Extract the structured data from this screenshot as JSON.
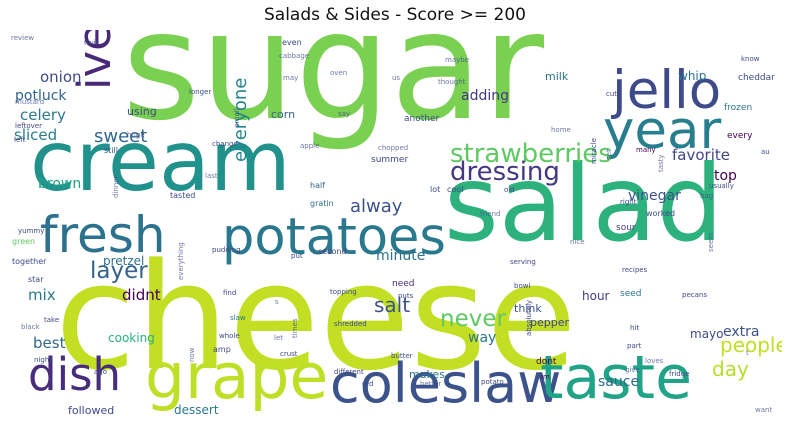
{
  "chart_data": {
    "type": "wordcloud",
    "title": "Salads & Sides - Score >= 200",
    "colormap": "viridis",
    "background": "#ffffff",
    "words": [
      {
        "text": "sugar",
        "size": 1.0,
        "color": "#7ad151",
        "vertical": false
      },
      {
        "text": "cheese",
        "size": 0.98,
        "color": "#c2df23",
        "vertical": false
      },
      {
        "text": "salad",
        "size": 0.7,
        "color": "#2db27d",
        "vertical": false
      },
      {
        "text": "cream",
        "size": 0.55,
        "color": "#21918c",
        "vertical": false
      },
      {
        "text": "grape",
        "size": 0.42,
        "color": "#bddf26",
        "vertical": false
      },
      {
        "text": "coleslaw",
        "size": 0.36,
        "color": "#3b528b",
        "vertical": false
      },
      {
        "text": "taste",
        "size": 0.4,
        "color": "#20a386",
        "vertical": false
      },
      {
        "text": "potatoes",
        "size": 0.34,
        "color": "#2a788e",
        "vertical": false
      },
      {
        "text": "jello",
        "size": 0.35,
        "color": "#3e4a89",
        "vertical": false
      },
      {
        "text": "year",
        "size": 0.35,
        "color": "#277f8e",
        "vertical": false
      },
      {
        "text": "fresh",
        "size": 0.33,
        "color": "#2c728e",
        "vertical": false
      },
      {
        "text": "dish",
        "size": 0.3,
        "color": "#472d7b",
        "vertical": false
      },
      {
        "text": "ive",
        "size": 0.3,
        "color": "#482878",
        "vertical": true
      },
      {
        "text": "strawberries",
        "size": 0.17,
        "color": "#5ec962",
        "vertical": false
      },
      {
        "text": "dressing",
        "size": 0.17,
        "color": "#453781",
        "vertical": false
      },
      {
        "text": "layer",
        "size": 0.15,
        "color": "#33638d",
        "vertical": false
      },
      {
        "text": "never",
        "size": 0.15,
        "color": "#5ec962",
        "vertical": false
      },
      {
        "text": "people",
        "size": 0.13,
        "color": "#c2df23",
        "vertical": false
      },
      {
        "text": "day",
        "size": 0.13,
        "color": "#b5de2b",
        "vertical": false
      },
      {
        "text": "salt",
        "size": 0.13,
        "color": "#3b528b",
        "vertical": false
      },
      {
        "text": "sweet",
        "size": 0.12,
        "color": "#31688e",
        "vertical": false
      },
      {
        "text": "alway",
        "size": 0.12,
        "color": "#3b528b",
        "vertical": false
      },
      {
        "text": "everyone",
        "size": 0.12,
        "color": "#25858e",
        "vertical": true
      },
      {
        "text": "favorite",
        "size": 0.1,
        "color": "#414487",
        "vertical": false
      },
      {
        "text": "celery",
        "size": 0.1,
        "color": "#2a788e",
        "vertical": false
      },
      {
        "text": "onion",
        "size": 0.1,
        "color": "#3e4a89",
        "vertical": false
      },
      {
        "text": "potluck",
        "size": 0.09,
        "color": "#33638d",
        "vertical": false
      },
      {
        "text": "sliced",
        "size": 0.1,
        "color": "#277f8e",
        "vertical": false
      },
      {
        "text": "adding",
        "size": 0.09,
        "color": "#453781",
        "vertical": false
      },
      {
        "text": "didnt",
        "size": 0.1,
        "color": "#440154",
        "vertical": false
      },
      {
        "text": "mix",
        "size": 0.1,
        "color": "#2a788e",
        "vertical": false
      },
      {
        "text": "best",
        "size": 0.1,
        "color": "#31688e",
        "vertical": false
      },
      {
        "text": "brown",
        "size": 0.09,
        "color": "#1fa187",
        "vertical": false
      },
      {
        "text": "top",
        "size": 0.09,
        "color": "#440154",
        "vertical": false
      },
      {
        "text": "vinegar",
        "size": 0.09,
        "color": "#3b528b",
        "vertical": false
      },
      {
        "text": "minute",
        "size": 0.09,
        "color": "#2c728e",
        "vertical": false
      },
      {
        "text": "extra",
        "size": 0.09,
        "color": "#3b528b",
        "vertical": false
      },
      {
        "text": "way",
        "size": 0.09,
        "color": "#2a788e",
        "vertical": false
      },
      {
        "text": "sauce",
        "size": 0.09,
        "color": "#31688e",
        "vertical": false
      },
      {
        "text": "mayo",
        "size": 0.08,
        "color": "#3e4a89",
        "vertical": false
      },
      {
        "text": "whip",
        "size": 0.08,
        "color": "#2c728e",
        "vertical": false
      },
      {
        "text": "cooking",
        "size": 0.08,
        "color": "#29af7f",
        "vertical": false
      },
      {
        "text": "pretzel",
        "size": 0.08,
        "color": "#2c728e",
        "vertical": false
      },
      {
        "text": "hour",
        "size": 0.08,
        "color": "#433e85",
        "vertical": false
      },
      {
        "text": "dessert",
        "size": 0.08,
        "color": "#2a788e",
        "vertical": false
      },
      {
        "text": "makes",
        "size": 0.07,
        "color": "#2a788e",
        "vertical": false
      },
      {
        "text": "pepper",
        "size": 0.07,
        "color": "#414487",
        "vertical": false
      },
      {
        "text": "think",
        "size": 0.07,
        "color": "#3b528b",
        "vertical": false
      },
      {
        "text": "followed",
        "size": 0.07,
        "color": "#3e4a89",
        "vertical": false
      },
      {
        "text": "milk",
        "size": 0.07,
        "color": "#2c728e",
        "vertical": false
      },
      {
        "text": "corn",
        "size": 0.07,
        "color": "#33638d",
        "vertical": false
      },
      {
        "text": "using",
        "size": 0.07,
        "color": "#3e4a89",
        "vertical": false
      },
      {
        "text": "summer",
        "size": 0.06,
        "color": "#3e4a89",
        "vertical": false
      },
      {
        "text": "every",
        "size": 0.06,
        "color": "#440154",
        "vertical": false
      },
      {
        "text": "cheddar",
        "size": 0.06,
        "color": "#3e4a89",
        "vertical": false
      },
      {
        "text": "frozen",
        "size": 0.06,
        "color": "#2c728e",
        "vertical": false
      },
      {
        "text": "another",
        "size": 0.06,
        "color": "#3e4a89",
        "vertical": false
      },
      {
        "text": "dont",
        "size": 0.06,
        "color": "#440154",
        "vertical": false
      },
      {
        "text": "need",
        "size": 0.06,
        "color": "#482878",
        "vertical": false
      },
      {
        "text": "seed",
        "size": 0.06,
        "color": "#2a788e",
        "vertical": false
      },
      {
        "text": "sour",
        "size": 0.06,
        "color": "#433e85",
        "vertical": false
      },
      {
        "text": "worked",
        "size": 0.05,
        "color": "#3e4a89",
        "vertical": false
      },
      {
        "text": "amp",
        "size": 0.05,
        "color": "#3e4a89",
        "vertical": false
      },
      {
        "text": "half",
        "size": 0.05,
        "color": "#33638d",
        "vertical": false
      },
      {
        "text": "second",
        "size": 0.05,
        "color": "#414487",
        "vertical": false
      },
      {
        "text": "tasted",
        "size": 0.05,
        "color": "#3e4a89",
        "vertical": false
      },
      {
        "text": "even",
        "size": 0.05,
        "color": "#3e4a89",
        "vertical": false
      },
      {
        "text": "still",
        "size": 0.05,
        "color": "#3b528b",
        "vertical": false
      },
      {
        "text": "green",
        "size": 0.05,
        "color": "#5ec962",
        "vertical": false
      },
      {
        "text": "together",
        "size": 0.05,
        "color": "#3e4a89",
        "vertical": false
      },
      {
        "text": "star",
        "size": 0.05,
        "color": "#3e4a89",
        "vertical": false
      },
      {
        "text": "gratin",
        "size": 0.05,
        "color": "#2c728e",
        "vertical": false
      },
      {
        "text": "lot",
        "size": 0.05,
        "color": "#3e4a89",
        "vertical": false
      },
      {
        "text": "cool",
        "size": 0.05,
        "color": "#3e4a89",
        "vertical": false
      },
      {
        "text": "fruit",
        "size": 0.04,
        "color": "#3e4a89",
        "vertical": false
      },
      {
        "text": "usually",
        "size": 0.04,
        "color": "#3e4a89",
        "vertical": false
      },
      {
        "text": "right",
        "size": 0.04,
        "color": "#3e4a89",
        "vertical": false
      },
      {
        "text": "yummy",
        "size": 0.04,
        "color": "#3e4a89",
        "vertical": false
      },
      {
        "text": "different",
        "size": 0.04,
        "color": "#3e4a89",
        "vertical": false
      },
      {
        "text": "crust",
        "size": 0.04,
        "color": "#3e4a89",
        "vertical": false
      },
      {
        "text": "whole",
        "size": 0.04,
        "color": "#3e4a89",
        "vertical": false
      },
      {
        "text": "slaw",
        "size": 0.04,
        "color": "#2a788e",
        "vertical": false
      },
      {
        "text": "longer",
        "size": 0.04,
        "color": "#3e4a89",
        "vertical": false
      },
      {
        "text": "cut",
        "size": 0.04,
        "color": "#3e4a89",
        "vertical": false
      },
      {
        "text": "old",
        "size": 0.04,
        "color": "#3e4a89",
        "vertical": false
      },
      {
        "text": "take",
        "size": 0.04,
        "color": "#3e4a89",
        "vertical": false
      },
      {
        "text": "night",
        "size": 0.04,
        "color": "#3e4a89",
        "vertical": false
      },
      {
        "text": "leftover",
        "size": 0.04,
        "color": "#3e4a89",
        "vertical": false
      },
      {
        "text": "left",
        "size": 0.04,
        "color": "#3e4a89",
        "vertical": false
      },
      {
        "text": "change",
        "size": 0.04,
        "color": "#3e4a89",
        "vertical": false
      },
      {
        "text": "pudding",
        "size": 0.04,
        "color": "#3e4a89",
        "vertical": false
      },
      {
        "text": "put",
        "size": 0.04,
        "color": "#3e4a89",
        "vertical": false
      },
      {
        "text": "find",
        "size": 0.04,
        "color": "#3e4a89",
        "vertical": false
      },
      {
        "text": "nuts",
        "size": 0.04,
        "color": "#3e4a89",
        "vertical": false
      },
      {
        "text": "bowl",
        "size": 0.04,
        "color": "#3e4a89",
        "vertical": false
      },
      {
        "text": "fridge",
        "size": 0.04,
        "color": "#3e4a89",
        "vertical": false
      },
      {
        "text": "red",
        "size": 0.04,
        "color": "#3e4a89",
        "vertical": false
      },
      {
        "text": "im",
        "size": 0.04,
        "color": "#440154",
        "vertical": false
      },
      {
        "text": "hit",
        "size": 0.04,
        "color": "#3e4a89",
        "vertical": false
      },
      {
        "text": "part",
        "size": 0.04,
        "color": "#3e4a89",
        "vertical": false
      },
      {
        "text": "recipes",
        "size": 0.04,
        "color": "#3e4a89",
        "vertical": false
      },
      {
        "text": "serving",
        "size": 0.04,
        "color": "#3e4a89",
        "vertical": false
      },
      {
        "text": "pecans",
        "size": 0.04,
        "color": "#3e4a89",
        "vertical": false
      },
      {
        "text": "ago",
        "size": 0.04,
        "color": "#3e4a89",
        "vertical": false
      },
      {
        "text": "potato",
        "size": 0.04,
        "color": "#3e4a89",
        "vertical": false
      },
      {
        "text": "butter",
        "size": 0.04,
        "color": "#3e4a89",
        "vertical": false
      },
      {
        "text": "shredded",
        "size": 0.04,
        "color": "#3e4a89",
        "vertical": false
      },
      {
        "text": "topping",
        "size": 0.04,
        "color": "#3e4a89",
        "vertical": false
      },
      {
        "text": "absolutely",
        "size": 0.04,
        "color": "#3e4a89",
        "vertical": false
      },
      {
        "text": "many",
        "size": 0.04,
        "color": "#440154",
        "vertical": false
      },
      {
        "text": "miracle",
        "size": 0.04,
        "color": "#3e4a89",
        "vertical": false
      },
      {
        "text": "au",
        "size": 0.04,
        "color": "#3e4a89",
        "vertical": false
      },
      {
        "text": "know",
        "size": 0.04,
        "color": "#3e4a89",
        "vertical": false
      },
      {
        "text": "cabbage",
        "size": 0.03,
        "color": "#3e4a89",
        "vertical": false
      },
      {
        "text": "maybe",
        "size": 0.03,
        "color": "#3e4a89",
        "vertical": false
      },
      {
        "text": "review",
        "size": 0.03,
        "color": "#3e4a89",
        "vertical": false
      },
      {
        "text": "mustard",
        "size": 0.03,
        "color": "#3e4a89",
        "vertical": false
      },
      {
        "text": "huge",
        "size": 0.03,
        "color": "#3e4a89",
        "vertical": false
      },
      {
        "text": "dinner",
        "size": 0.03,
        "color": "#3e4a89",
        "vertical": false
      },
      {
        "text": "everything",
        "size": 0.03,
        "color": "#3e4a89",
        "vertical": false
      },
      {
        "text": "apple",
        "size": 0.03,
        "color": "#3e4a89",
        "vertical": false
      },
      {
        "text": "last",
        "size": 0.03,
        "color": "#3e4a89",
        "vertical": false
      },
      {
        "text": "let",
        "size": 0.03,
        "color": "#3e4a89",
        "vertical": false
      },
      {
        "text": "oven",
        "size": 0.03,
        "color": "#3e4a89",
        "vertical": false
      },
      {
        "text": "us",
        "size": 0.03,
        "color": "#3e4a89",
        "vertical": false
      },
      {
        "text": "say",
        "size": 0.03,
        "color": "#3e4a89",
        "vertical": false
      },
      {
        "text": "thought",
        "size": 0.03,
        "color": "#3e4a89",
        "vertical": false
      },
      {
        "text": "home",
        "size": 0.03,
        "color": "#3e4a89",
        "vertical": false
      },
      {
        "text": "chopped",
        "size": 0.03,
        "color": "#3e4a89",
        "vertical": false
      },
      {
        "text": "friend",
        "size": 0.03,
        "color": "#3e4a89",
        "vertical": false
      },
      {
        "text": "nice",
        "size": 0.03,
        "color": "#3e4a89",
        "vertical": false
      },
      {
        "text": "tasty",
        "size": 0.03,
        "color": "#3e4a89",
        "vertical": false
      },
      {
        "text": "give",
        "size": 0.03,
        "color": "#3e4a89",
        "vertical": false
      },
      {
        "text": "bag",
        "size": 0.03,
        "color": "#3e4a89",
        "vertical": false
      },
      {
        "text": "seem",
        "size": 0.03,
        "color": "#3e4a89",
        "vertical": false
      },
      {
        "text": "loves",
        "size": 0.03,
        "color": "#3e4a89",
        "vertical": false
      },
      {
        "text": "want",
        "size": 0.03,
        "color": "#3e4a89",
        "vertical": false
      },
      {
        "text": "better",
        "size": 0.03,
        "color": "#3e4a89",
        "vertical": false
      },
      {
        "text": "black",
        "size": 0.03,
        "color": "#3e4a89",
        "vertical": false
      },
      {
        "text": "small",
        "size": 0.03,
        "color": "#3e4a89",
        "vertical": false
      },
      {
        "text": "set",
        "size": 0.03,
        "color": "#3e4a89",
        "vertical": false
      },
      {
        "text": "times",
        "size": 0.03,
        "color": "#3e4a89",
        "vertical": false
      },
      {
        "text": "now",
        "size": 0.03,
        "color": "#3e4a89",
        "vertical": false
      },
      {
        "text": "t",
        "size": 0.03,
        "color": "#3e4a89",
        "vertical": false
      },
      {
        "text": "s",
        "size": 0.03,
        "color": "#3e4a89",
        "vertical": false
      },
      {
        "text": "may",
        "size": 0.03,
        "color": "#3e4a89",
        "vertical": false
      }
    ]
  }
}
